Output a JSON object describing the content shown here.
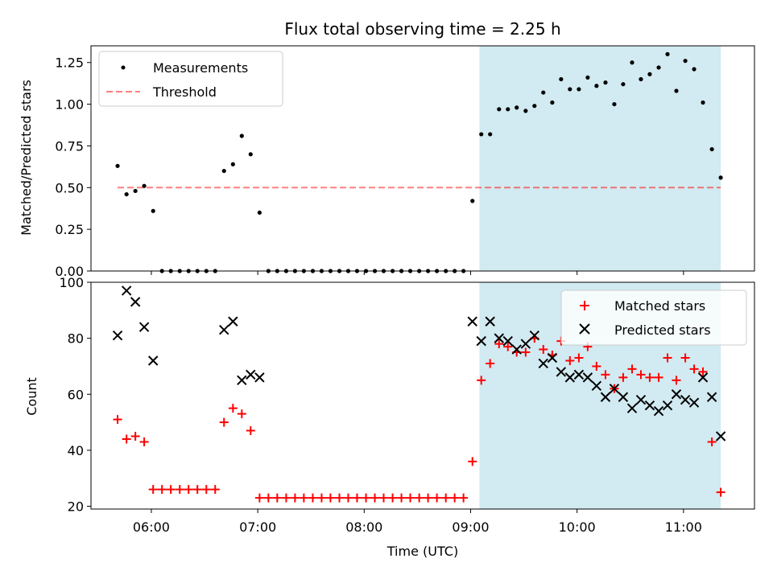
{
  "chart_data": {
    "title": "Flux total observing time = 2.25 h",
    "xlabel": "Time (UTC)",
    "x_ticks": [
      "06:00",
      "07:00",
      "08:00",
      "09:00",
      "10:00",
      "11:00"
    ],
    "x_tick_hours": [
      6,
      7,
      8,
      9,
      10,
      11
    ],
    "xlim_hours": [
      5.433,
      11.667
    ],
    "shaded_span_hours": [
      9.083,
      11.35
    ],
    "shade_color": "#add8e6",
    "panels": [
      {
        "type": "scatter",
        "ylabel": "Matched/Predicted stars",
        "ylim": [
          0,
          1.35
        ],
        "y_ticks": [
          "0.00",
          "0.25",
          "0.50",
          "0.75",
          "1.00",
          "1.25"
        ],
        "y_tick_values": [
          0,
          0.25,
          0.5,
          0.75,
          1.0,
          1.25
        ],
        "legend": [
          "Measurements",
          "Threshold"
        ],
        "legend_position": "upper-left",
        "threshold": {
          "name": "Threshold",
          "value": 0.5,
          "x_range_hours": [
            5.683,
            11.35
          ],
          "color": "#ff0000",
          "alpha": 0.5
        },
        "series": [
          {
            "name": "Measurements",
            "color": "#000000",
            "marker": "dot",
            "x_hours": [
              5.683,
              5.767,
              5.85,
              5.933,
              6.017,
              6.1,
              6.183,
              6.267,
              6.35,
              6.433,
              6.517,
              6.6,
              6.683,
              6.767,
              6.85,
              6.933,
              7.017,
              7.1,
              7.183,
              7.267,
              7.35,
              7.433,
              7.517,
              7.6,
              7.683,
              7.767,
              7.85,
              7.933,
              8.017,
              8.1,
              8.183,
              8.267,
              8.35,
              8.433,
              8.517,
              8.6,
              8.683,
              8.767,
              8.85,
              8.933,
              9.017,
              9.1,
              9.183,
              9.267,
              9.35,
              9.433,
              9.517,
              9.6,
              9.683,
              9.767,
              9.85,
              9.933,
              10.017,
              10.1,
              10.183,
              10.267,
              10.35,
              10.433,
              10.517,
              10.6,
              10.683,
              10.767,
              10.85,
              10.933,
              11.017,
              11.1,
              11.183,
              11.267,
              11.35
            ],
            "y": [
              0.63,
              0.46,
              0.48,
              0.51,
              0.36,
              0,
              0,
              0,
              0,
              0,
              0,
              0,
              0.6,
              0.64,
              0.81,
              0.7,
              0.35,
              0,
              0,
              0,
              0,
              0,
              0,
              0,
              0,
              0,
              0,
              0,
              0,
              0,
              0,
              0,
              0,
              0,
              0,
              0,
              0,
              0,
              0,
              0,
              0.42,
              0.82,
              0.82,
              0.97,
              0.97,
              0.98,
              0.96,
              0.99,
              1.07,
              1.01,
              1.15,
              1.09,
              1.09,
              1.16,
              1.11,
              1.13,
              1.0,
              1.12,
              1.25,
              1.15,
              1.18,
              1.22,
              1.3,
              1.08,
              1.26,
              1.21,
              1.01,
              0.73,
              0.56
            ]
          }
        ]
      },
      {
        "type": "scatter",
        "ylabel": "Count",
        "ylim": [
          19,
          100
        ],
        "y_ticks": [
          "20",
          "40",
          "60",
          "80",
          "100"
        ],
        "y_tick_values": [
          20,
          40,
          60,
          80,
          100
        ],
        "legend": [
          "Matched stars",
          "Predicted stars"
        ],
        "legend_position": "upper-right",
        "series": [
          {
            "name": "Matched stars",
            "color": "#ff0000",
            "marker": "plus",
            "x_hours": [
              5.683,
              5.767,
              5.85,
              5.933,
              6.017,
              6.1,
              6.183,
              6.267,
              6.35,
              6.433,
              6.517,
              6.6,
              6.683,
              6.767,
              6.85,
              6.933,
              7.017,
              7.1,
              7.183,
              7.267,
              7.35,
              7.433,
              7.517,
              7.6,
              7.683,
              7.767,
              7.85,
              7.933,
              8.017,
              8.1,
              8.183,
              8.267,
              8.35,
              8.433,
              8.517,
              8.6,
              8.683,
              8.767,
              8.85,
              8.933,
              9.017,
              9.1,
              9.183,
              9.267,
              9.35,
              9.433,
              9.517,
              9.6,
              9.683,
              9.767,
              9.85,
              9.933,
              10.017,
              10.1,
              10.183,
              10.267,
              10.35,
              10.433,
              10.517,
              10.6,
              10.683,
              10.767,
              10.85,
              10.933,
              11.017,
              11.1,
              11.183,
              11.267,
              11.35
            ],
            "y": [
              51,
              44,
              45,
              43,
              26,
              26,
              26,
              26,
              26,
              26,
              26,
              26,
              50,
              55,
              53,
              47,
              23,
              23,
              23,
              23,
              23,
              23,
              23,
              23,
              23,
              23,
              23,
              23,
              23,
              23,
              23,
              23,
              23,
              23,
              23,
              23,
              23,
              23,
              23,
              23,
              36,
              65,
              71,
              78,
              77,
              75,
              75,
              80,
              76,
              74,
              79,
              72,
              73,
              77,
              70,
              67,
              62,
              66,
              69,
              67,
              66,
              66,
              73,
              65,
              73,
              69,
              68,
              43,
              25
            ]
          },
          {
            "name": "Predicted stars",
            "color": "#000000",
            "marker": "x",
            "x_hours": [
              5.683,
              5.767,
              5.85,
              5.933,
              6.017,
              6.683,
              6.767,
              6.85,
              6.933,
              7.017,
              9.017,
              9.1,
              9.183,
              9.267,
              9.35,
              9.433,
              9.517,
              9.6,
              9.683,
              9.767,
              9.85,
              9.933,
              10.017,
              10.1,
              10.183,
              10.267,
              10.35,
              10.433,
              10.517,
              10.6,
              10.683,
              10.767,
              10.85,
              10.933,
              11.017,
              11.1,
              11.183,
              11.267,
              11.35
            ],
            "y": [
              81,
              97,
              93,
              84,
              72,
              83,
              86,
              65,
              67,
              66,
              86,
              79,
              86,
              80,
              79,
              76,
              78,
              81,
              71,
              73,
              68,
              66,
              67,
              66,
              63,
              59,
              62,
              59,
              55,
              58,
              56,
              54,
              56,
              60,
              58,
              57,
              66,
              59,
              45
            ]
          }
        ]
      }
    ]
  }
}
